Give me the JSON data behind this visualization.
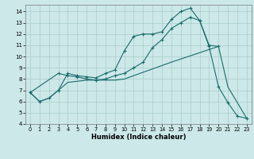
{
  "xlabel": "Humidex (Indice chaleur)",
  "bg_color": "#cce8e8",
  "grid_color": "#aacccc",
  "line_color": "#1a6b6b",
  "xlim": [
    -0.5,
    23.5
  ],
  "ylim": [
    4,
    14.6
  ],
  "xticks": [
    0,
    1,
    2,
    3,
    4,
    5,
    6,
    7,
    8,
    9,
    10,
    11,
    12,
    13,
    14,
    15,
    16,
    17,
    18,
    19,
    20,
    21,
    22,
    23
  ],
  "yticks": [
    4,
    5,
    6,
    7,
    8,
    9,
    10,
    11,
    12,
    13,
    14
  ],
  "line1_x": [
    0,
    1,
    2,
    3,
    4,
    5,
    6,
    7,
    8,
    9,
    10,
    11,
    12,
    13,
    14,
    15,
    16,
    17,
    18,
    19,
    20,
    21,
    22,
    23
  ],
  "line1_y": [
    6.8,
    6.0,
    6.3,
    7.0,
    8.5,
    8.3,
    8.2,
    8.1,
    8.5,
    8.8,
    10.5,
    11.8,
    12.0,
    12.0,
    12.2,
    13.3,
    14.0,
    14.3,
    13.2,
    10.9,
    7.3,
    5.9,
    4.7,
    4.5
  ],
  "line2_x": [
    0,
    3,
    4,
    5,
    6,
    7,
    8,
    9,
    10,
    11,
    12,
    13,
    14,
    15,
    16,
    17,
    18,
    19,
    20
  ],
  "line2_y": [
    6.8,
    8.5,
    8.3,
    8.2,
    8.0,
    7.9,
    8.0,
    8.3,
    8.5,
    9.0,
    9.5,
    10.8,
    11.5,
    12.5,
    13.0,
    13.5,
    13.2,
    11.0,
    10.9
  ],
  "line3_x": [
    0,
    1,
    2,
    3,
    4,
    5,
    6,
    7,
    8,
    9,
    10,
    15,
    20,
    21,
    22,
    23
  ],
  "line3_y": [
    6.8,
    6.0,
    6.3,
    7.0,
    7.7,
    7.8,
    7.9,
    7.9,
    7.9,
    7.9,
    8.0,
    9.5,
    10.9,
    7.3,
    5.9,
    4.5
  ]
}
